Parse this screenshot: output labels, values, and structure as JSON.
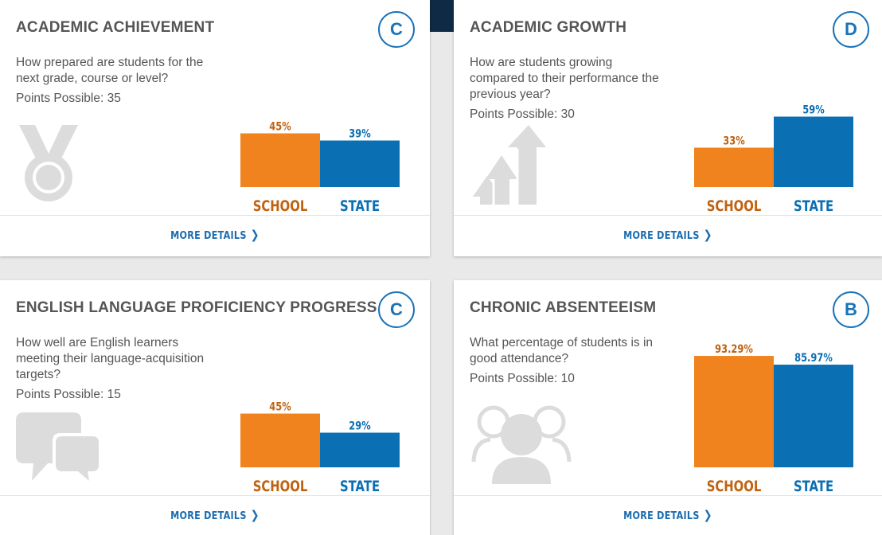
{
  "cards": [
    {
      "title": "ACADEMIC ACHIEVEMENT",
      "grade": "C",
      "description": [
        "How prepared are students for the",
        "next grade, course or level?"
      ],
      "points": "Points Possible: 35",
      "icon": "medal-icon",
      "more": "MORE DETAILS",
      "chart_data": {
        "type": "bar",
        "categories": [
          "SCHOOL",
          "STATE"
        ],
        "values": [
          45,
          39
        ],
        "labels": [
          "45%",
          "39%"
        ],
        "ylim": [
          0,
          100
        ]
      }
    },
    {
      "title": "ACADEMIC GROWTH",
      "grade": "D",
      "description": [
        "How are students growing",
        "compared to their performance the",
        "previous year?"
      ],
      "points": "Points Possible: 30",
      "icon": "growth-arrows-icon",
      "more": "MORE DETAILS",
      "chart_data": {
        "type": "bar",
        "categories": [
          "SCHOOL",
          "STATE"
        ],
        "values": [
          33,
          59
        ],
        "labels": [
          "33%",
          "59%"
        ],
        "ylim": [
          0,
          100
        ]
      }
    },
    {
      "title": "ENGLISH LANGUAGE PROFICIENCY PROGRESS",
      "grade": "C",
      "description": [
        "How well are English learners",
        "meeting their language-acquisition",
        "targets?"
      ],
      "points": "Points Possible: 15",
      "icon": "speech-bubbles-icon",
      "more": "MORE DETAILS",
      "chart_data": {
        "type": "bar",
        "categories": [
          "SCHOOL",
          "STATE"
        ],
        "values": [
          45,
          29
        ],
        "labels": [
          "45%",
          "29%"
        ],
        "ylim": [
          0,
          100
        ]
      }
    },
    {
      "title": "CHRONIC ABSENTEEISM",
      "grade": "B",
      "description": [
        "What percentage of students is in",
        "good attendance?"
      ],
      "points": "Points Possible: 10",
      "icon": "people-icon",
      "more": "MORE DETAILS",
      "chart_data": {
        "type": "bar",
        "categories": [
          "SCHOOL",
          "STATE"
        ],
        "values": [
          93.29,
          85.97
        ],
        "labels": [
          "93.29%",
          "85.97%"
        ],
        "ylim": [
          0,
          100
        ]
      }
    }
  ],
  "colors": {
    "school": "#f0831e",
    "state": "#0a6fb3",
    "school_label": "#c0620f",
    "state_label": "#0a6fb3",
    "icon": "#dcdcdc"
  }
}
